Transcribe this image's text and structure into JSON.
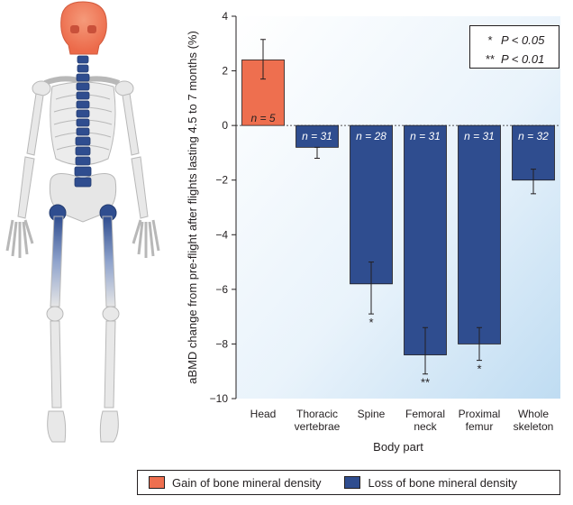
{
  "chart_data": {
    "type": "bar",
    "ylabel": "aBMD change from pre-flight after flights lasting 4.5 to 7 months (%)",
    "xlabel": "Body part",
    "ylim": [
      -10,
      4
    ],
    "yticks": [
      "4",
      "2",
      "0",
      "−2",
      "−4",
      "−6",
      "−8",
      "−10"
    ],
    "categories": [
      "Head",
      "Thoracic vertebrae",
      "Spine",
      "Femoral neck",
      "Proximal femur",
      "Whole skeleton"
    ],
    "category_lines": [
      [
        "Head"
      ],
      [
        "Thoracic",
        "vertebrae"
      ],
      [
        "Spine"
      ],
      [
        "Femoral",
        "neck"
      ],
      [
        "Proximal",
        "femur"
      ],
      [
        "Whole",
        "skeleton"
      ]
    ],
    "values": [
      2.4,
      -0.8,
      -5.8,
      -8.4,
      -8.0,
      -2.0
    ],
    "error_low": [
      1.7,
      -1.2,
      -6.9,
      -9.1,
      -8.6,
      -2.5
    ],
    "error_high": [
      3.15,
      -0.8,
      -5.0,
      -7.4,
      -7.4,
      -1.6
    ],
    "n_labels": [
      "n = 5",
      "n = 31",
      "n = 28",
      "n = 31",
      "n = 31",
      "n = 32"
    ],
    "significance": [
      "",
      "",
      "*",
      "**",
      "*",
      ""
    ],
    "gain_color": "#ee6f4f",
    "loss_color": "#2f4d8f"
  },
  "significance_legend": [
    {
      "symbol": "*",
      "text": "P < 0.05"
    },
    {
      "symbol": "**",
      "text": "P < 0.01"
    }
  ],
  "legend": {
    "gain": "Gain of bone mineral density",
    "loss": "Loss of bone mineral density"
  }
}
